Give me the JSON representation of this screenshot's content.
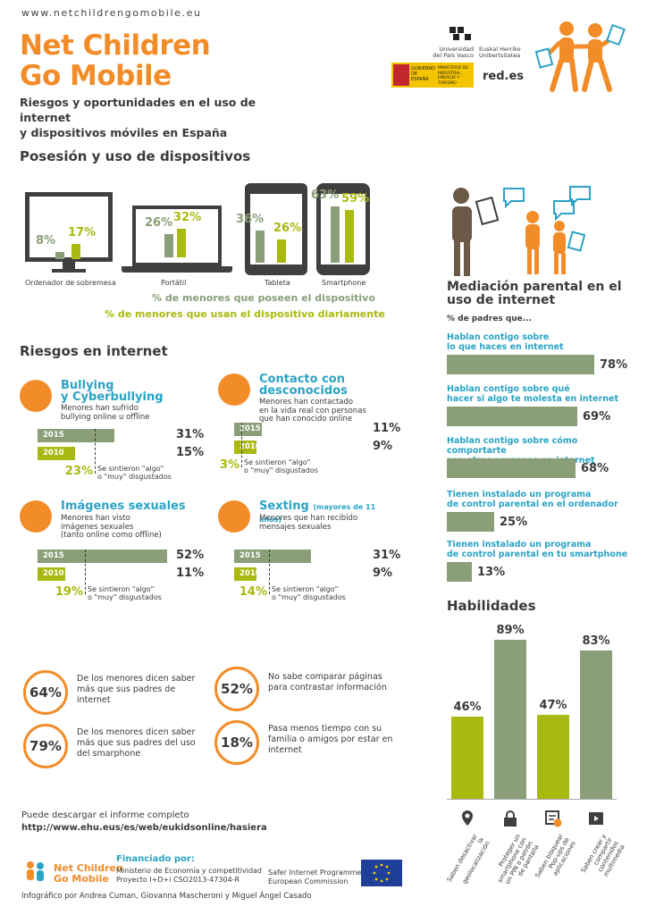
{
  "header": {
    "url": "www.netchildrengomobile.eu",
    "title_line1": "Net Children",
    "title_line2": "Go Mobile",
    "subtitle_line1": "Riesgos y oportunidades en el uso de internet",
    "subtitle_line2": "y dispositivos móviles en España",
    "logo_upv_line1": "Universidad",
    "logo_upv_line2": "del País Vasco",
    "logo_ehu_line1": "Euskal Herriko",
    "logo_ehu_line2": "Unibertsitatea",
    "logo_gob": "GOBIERNO DE ESPAÑA",
    "logo_min": "MINISTERIO DE INDUSTRIA, ENERGÍA Y TURISMO",
    "logo_red": "red.es"
  },
  "devices": {
    "heading": "Posesión y uso de dispositivos",
    "items": [
      {
        "name": "Ordenador de sobremesa",
        "own": 8,
        "own_label": "8%",
        "use": 17,
        "use_label": "17%"
      },
      {
        "name": "Portátil",
        "own": 26,
        "own_label": "26%",
        "use": 32,
        "use_label": "32%"
      },
      {
        "name": "Tableta",
        "own": 36,
        "own_label": "36%",
        "use": 26,
        "use_label": "26%"
      },
      {
        "name": "Smartphone",
        "own": 63,
        "own_label": "63%",
        "use": 59,
        "use_label": "59%"
      }
    ],
    "legend_own": "% de menores que poseen el dispositivo",
    "legend_use": "% de menores que usan el dispositivo diariamente"
  },
  "risks": {
    "heading": "Riesgos en internet",
    "disgust_text_l1": "Se sintieron \"algo\"",
    "disgust_text_l2": "o \"muy\" disgustados",
    "items": [
      {
        "title_l1": "Bullying",
        "title_l2": "y Cyberbullying",
        "desc_l1": "Menores han sufrido",
        "desc_l2": "bullying online u offline",
        "desc_l3": "",
        "y2015": "2015",
        "v2015": "31%",
        "y2010": "2010",
        "v2010": "15%",
        "disgust": "23%"
      },
      {
        "title_l1": "Contacto con",
        "title_l2": "desconocidos",
        "desc_l1": "Menores han contactado",
        "desc_l2": "en la vida real con personas",
        "desc_l3": "que han conocido online",
        "y2015": "2015",
        "v2015": "11%",
        "y2010": "2010",
        "v2010": "9%",
        "disgust": "3%"
      },
      {
        "title_l1": "Imágenes sexuales",
        "title_l2": "",
        "desc_l1": "Menores han visto",
        "desc_l2": "imágenes sexuales",
        "desc_l3": "(tanto online como offline)",
        "y2015": "2015",
        "v2015": "52%",
        "y2010": "2010",
        "v2010": "11%",
        "disgust": "19%"
      },
      {
        "title_l1": "Sexting",
        "title_l2": "(mayores de 11 años)",
        "desc_l1": "Menores que han recibido",
        "desc_l2": "mensajes sexuales",
        "desc_l3": "",
        "y2015": "2015",
        "v2015": "31%",
        "y2010": "2010",
        "v2010": "9%",
        "disgust": "14%"
      }
    ]
  },
  "stats": [
    {
      "value": "64%",
      "text_l1": "De los menores dicen saber",
      "text_l2": "más que sus padres de",
      "text_l3": "internet"
    },
    {
      "value": "52%",
      "text_l1": "No sabe comparar páginas",
      "text_l2": "para contrastar información",
      "text_l3": ""
    },
    {
      "value": "79%",
      "text_l1": "De los menores dicen saber",
      "text_l2": "más que sus padres del uso",
      "text_l3": "del smarphone"
    },
    {
      "value": "18%",
      "text_l1": "Pasa menos tiempo con su",
      "text_l2": "familia o amigos por estar en",
      "text_l3": "internet"
    }
  ],
  "mediation": {
    "heading_l1": "Mediación parental en el",
    "heading_l2": "uso de internet",
    "subheading": "% de padres que...",
    "items": [
      {
        "l1": "Hablan contigo sobre",
        "l2": "lo que haces en internet",
        "value": 78,
        "label": "78%"
      },
      {
        "l1": "Hablan contigo sobre qué",
        "l2": "hacer si algo te molesta en internet",
        "value": 69,
        "label": "69%"
      },
      {
        "l1": "Hablan contigo sobre cómo comportarte",
        "l2": "con otras personas en internet",
        "value": 68,
        "label": "68%"
      },
      {
        "l1": "Tienen instalado un programa",
        "l2": "de control parental en el ordenador",
        "value": 25,
        "label": "25%"
      },
      {
        "l1": "Tienen instalado un programa",
        "l2": "de control parental en tu smartphone",
        "value": 13,
        "label": "13%"
      }
    ]
  },
  "skills": {
    "heading": "Habilidades",
    "items": [
      {
        "value": 46,
        "label": "46%",
        "color": "#a9b90f",
        "text": "Saben desactivar la geolocalización",
        "icon": "location-pin-icon"
      },
      {
        "value": 89,
        "label": "89%",
        "color": "#8a9e78",
        "text": "Proteger un smartphone con un PIN o patrón de pantalla",
        "icon": "lock-icon"
      },
      {
        "value": 47,
        "label": "47%",
        "color": "#a9b90f",
        "text": "Saben bloquear Pop-ups de aplicaciones",
        "icon": "popup-block-icon"
      },
      {
        "value": 83,
        "label": "83%",
        "color": "#8a9e78",
        "text": "Saben crear y compartir contenidos multimedia",
        "icon": "film-icon"
      }
    ]
  },
  "footer": {
    "download_l1": "Puede descargar el informe completo",
    "download_url": "http://www.ehu.eus/es/web/eukidsonline/hasiera",
    "logo_l1": "Net Children",
    "logo_l2": "Go Mobile",
    "funded_heading": "Financiado por:",
    "funded_l1": "Ministerio de Economía y competitividad",
    "funded_l2": "Proyecto I+D+i CSO2013-47304-R",
    "safer_l1": "Safer Internet Programme",
    "safer_l2": "European Commission",
    "credits": "Infográfico por Andrea Cuman, Giovanna Mascheroni y Miguel Ángel Casado"
  },
  "colors": {
    "orange": "#f28c28",
    "blue": "#2aa3c6",
    "green": "#8a9e78",
    "lime": "#a9b90f",
    "dark": "#3f3f3f"
  }
}
